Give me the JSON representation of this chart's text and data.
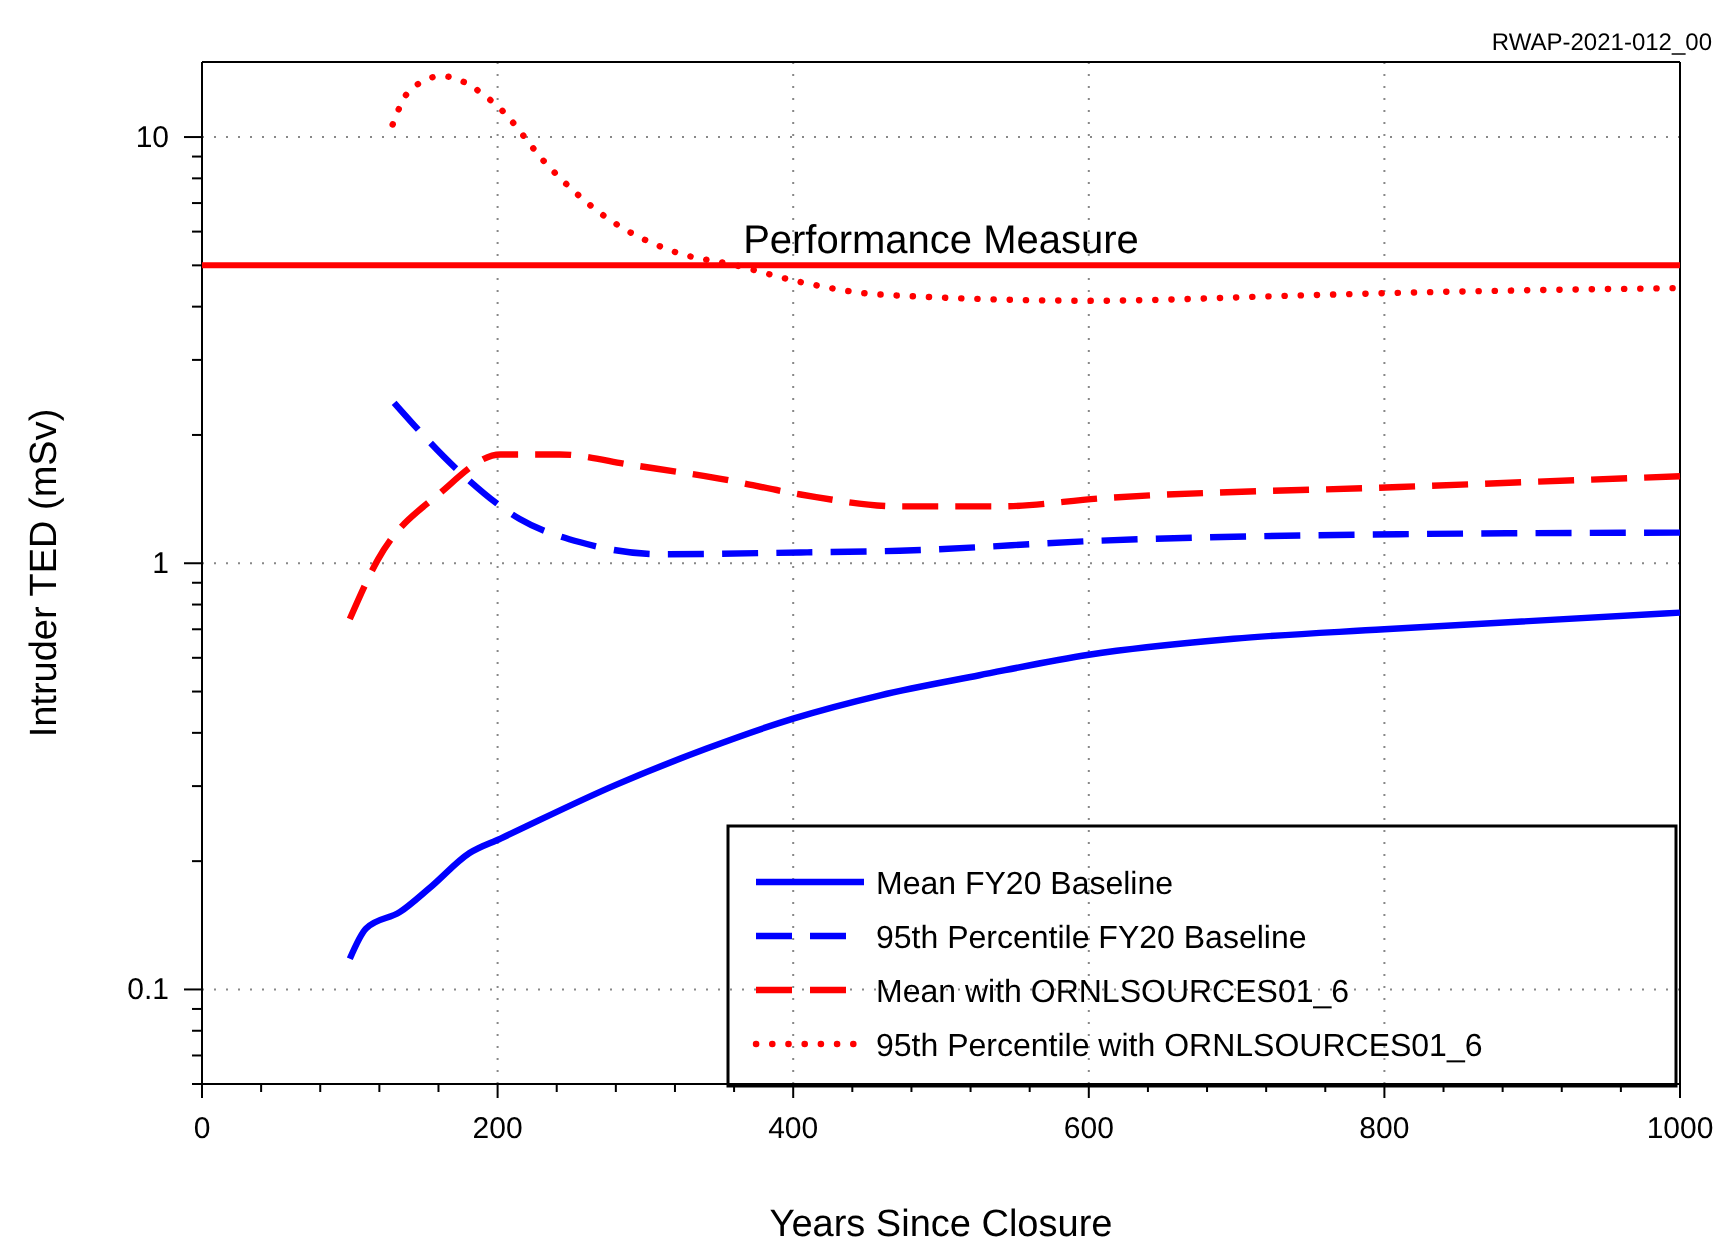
{
  "chart_data": {
    "type": "line",
    "xlabel": "Years Since Closure",
    "ylabel": "Intruder TED (mSv)",
    "annotations": [
      "RWAP-2021-012_00"
    ],
    "log": "y",
    "grid": true,
    "legend": "bottom right",
    "xlim": [
      0,
      1000
    ],
    "xticks": [
      0,
      {
        "value": 40,
        "label": null
      },
      {
        "value": 80,
        "label": null
      },
      {
        "value": 120,
        "label": null
      },
      {
        "value": 160,
        "label": null
      },
      200,
      {
        "value": 240,
        "label": null
      },
      {
        "value": 280,
        "label": null
      },
      {
        "value": 320,
        "label": null
      },
      {
        "value": 360,
        "label": null
      },
      400,
      {
        "value": 440,
        "label": null
      },
      {
        "value": 480,
        "label": null
      },
      {
        "value": 520,
        "label": null
      },
      {
        "value": 560,
        "label": null
      },
      600,
      {
        "value": 640,
        "label": null
      },
      {
        "value": 680,
        "label": null
      },
      {
        "value": 720,
        "label": null
      },
      {
        "value": 760,
        "label": null
      },
      800,
      {
        "value": 840,
        "label": null
      },
      {
        "value": 880,
        "label": null
      },
      {
        "value": 920,
        "label": null
      },
      {
        "value": 960,
        "label": null
      },
      1000
    ],
    "ylim": [
      0.06,
      15
    ],
    "yticks": [
      {
        "value": 0.06,
        "label": null
      },
      {
        "value": 0.07,
        "label": null
      },
      {
        "value": 0.08,
        "label": null
      },
      {
        "value": 0.09,
        "label": null
      },
      0.1,
      {
        "value": 0.2,
        "label": null
      },
      {
        "value": 0.3,
        "label": null
      },
      {
        "value": 0.4,
        "label": null
      },
      {
        "value": 0.5,
        "label": null
      },
      {
        "value": 0.6,
        "label": null
      },
      {
        "value": 0.7,
        "label": null
      },
      {
        "value": 0.8,
        "label": null
      },
      {
        "value": 0.9,
        "label": null
      },
      1,
      {
        "value": 2,
        "label": null
      },
      {
        "value": 3,
        "label": null
      },
      {
        "value": 4,
        "label": null
      },
      {
        "value": 5,
        "label": null
      },
      {
        "value": 6,
        "label": null
      },
      {
        "value": 7,
        "label": null
      },
      {
        "value": 8,
        "label": null
      },
      {
        "value": 9,
        "label": null
      },
      10
    ],
    "ref_lines": [
      {
        "axis": "y",
        "value": 5,
        "label": "Performance Measure",
        "color": "#ff0000",
        "line_style": "solid"
      }
    ],
    "series": [
      {
        "name": "Mean FY20 Baseline",
        "color": "#0000ff",
        "line_style": "solid",
        "x": [
          100,
          111,
          134,
          154,
          181,
          202,
          280,
          341,
          400,
          459,
          526,
          600,
          698,
          800,
          1000
        ],
        "values": [
          0.118,
          0.139,
          0.152,
          0.173,
          0.209,
          0.226,
          0.302,
          0.367,
          0.432,
          0.49,
          0.546,
          0.61,
          0.665,
          0.7,
          0.766
        ]
      },
      {
        "name": "95th Percentile FY20 Baseline",
        "color": "#0000ff",
        "line_style": "dashed",
        "x": [
          130,
          175,
          215,
          256,
          310,
          405,
          472,
          608,
          810,
          1000
        ],
        "values": [
          2.38,
          1.63,
          1.27,
          1.12,
          1.05,
          1.06,
          1.07,
          1.13,
          1.17,
          1.18
        ]
      },
      {
        "name": "Mean with ORNLSOURCES01_6",
        "color": "#ff0000",
        "line_style": "dashed",
        "x": [
          100,
          119,
          161,
          202,
          242,
          291,
          350,
          405,
          472,
          540,
          608,
          810,
          1000
        ],
        "values": [
          0.74,
          1.02,
          1.46,
          1.8,
          1.8,
          1.7,
          1.58,
          1.45,
          1.36,
          1.36,
          1.42,
          1.51,
          1.6
        ]
      },
      {
        "name": "95th Percentile with ORNLSOURCES01_6",
        "color": "#ff0000",
        "line_style": "dotted",
        "x": [
          129,
          140,
          162,
          199,
          235,
          269,
          321,
          359,
          406,
          459,
          603,
          743,
          810,
          995
        ],
        "values": [
          10.7,
          12.8,
          13.9,
          11.9,
          8.5,
          6.65,
          5.36,
          5.02,
          4.56,
          4.27,
          4.13,
          4.25,
          4.31,
          4.42
        ]
      }
    ]
  }
}
